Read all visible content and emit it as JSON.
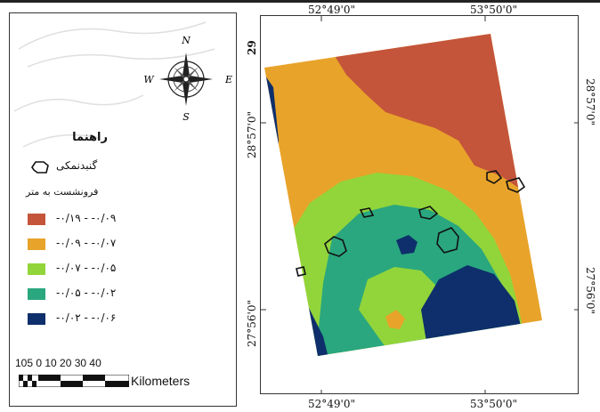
{
  "legend": {
    "title": "راهنما",
    "salt_dome_label": "گنبدنمکی",
    "subsidence_title": "فرونشست به متر",
    "classes": [
      {
        "label": "-۰/۱۹ - -۰/۰۹",
        "color": "#c4553a"
      },
      {
        "label": "-۰/۰۹ - -۰/۰۷",
        "color": "#e8a32a"
      },
      {
        "label": "-۰/۰۷ - -۰/۰۵",
        "color": "#92d53a"
      },
      {
        "label": "-۰/۰۵ - -۰/۰۲",
        "color": "#2aa77e"
      },
      {
        "label": "-۰/۰۲ - -۰/۰۶",
        "color": "#0e2f6b"
      }
    ]
  },
  "compass": {
    "n": "N",
    "s": "S",
    "e": "E",
    "w": "W"
  },
  "scale": {
    "numbers": "105 0   10  20  30  40",
    "unit": "Kilometers"
  },
  "map": {
    "coords": {
      "top_left": "52°49'0\"",
      "top_right": "53°50'0\"",
      "bottom_left": "52°49'0\"",
      "bottom_right": "53°50'0\"",
      "left_top": "29",
      "left_mid": "28°57'0\"",
      "left_low": "27°56'0\"",
      "right_mid": "28°57'0\"",
      "right_low": "27°56'0\""
    }
  }
}
